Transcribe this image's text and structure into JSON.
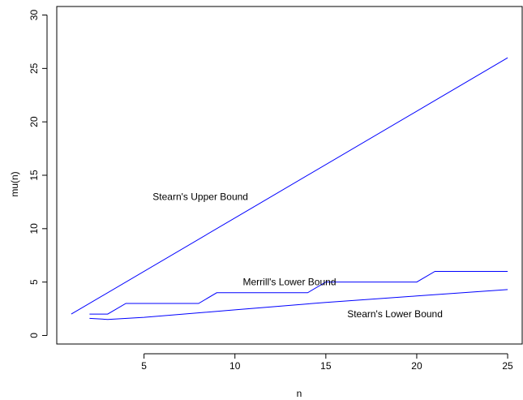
{
  "chart_data": {
    "type": "line",
    "xlabel": "n",
    "ylabel": "mu(n)",
    "xlim": [
      0.2,
      25.8
    ],
    "ylim": [
      -0.8,
      30.8
    ],
    "xticks": [
      "5",
      "10",
      "15",
      "20",
      "25"
    ],
    "yticks": [
      "0",
      "5",
      "10",
      "15",
      "20",
      "25",
      "30"
    ],
    "color": "#0000ff",
    "grid": false,
    "series": [
      {
        "name": "Stearn's Upper Bound",
        "x": [
          1,
          25
        ],
        "y": [
          2,
          26
        ],
        "label_at": [
          8.1,
          13
        ]
      },
      {
        "name": "Merrill's Lower Bound",
        "x": [
          2,
          3,
          4,
          8,
          9,
          14,
          15,
          20,
          21,
          25
        ],
        "y": [
          2,
          2,
          3,
          3,
          4,
          4,
          5,
          5,
          6,
          6
        ],
        "label_at": [
          13.0,
          5
        ]
      },
      {
        "name": "Stearn's Lower Bound",
        "x": [
          2,
          3,
          5,
          10,
          15,
          20,
          25
        ],
        "y": [
          1.6,
          1.5,
          1.7,
          2.4,
          3.1,
          3.7,
          4.3
        ],
        "label_at": [
          18.8,
          2
        ]
      }
    ]
  }
}
